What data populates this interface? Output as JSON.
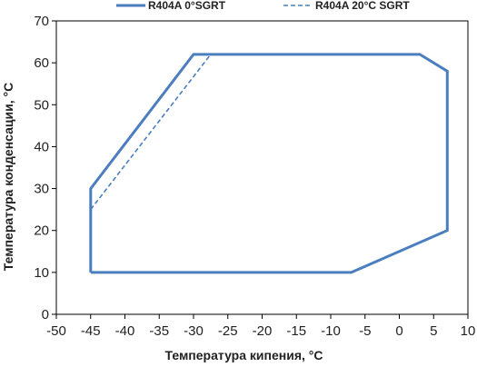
{
  "chart_data": {
    "type": "line",
    "title": "",
    "xlabel": "Температура кипения, °C",
    "ylabel": "Температура конденсации, °C",
    "xlim": [
      -50,
      10
    ],
    "ylim": [
      0,
      70
    ],
    "x_ticks": [
      -50,
      -45,
      -40,
      -35,
      -30,
      -25,
      -20,
      -15,
      -10,
      -5,
      0,
      5,
      10
    ],
    "y_ticks": [
      0,
      10,
      20,
      30,
      40,
      50,
      60,
      70
    ],
    "x_tick_labels": [
      "-50",
      "-45",
      "-40",
      "-35",
      "-30",
      "-25",
      "-20",
      "-15",
      "-10",
      "-5",
      "0",
      "5",
      "10"
    ],
    "y_tick_labels": [
      "0",
      "10",
      "20",
      "30",
      "40",
      "50",
      "60",
      "70"
    ],
    "grid": false,
    "legend_position": "top",
    "colors": {
      "series": "#4a7ebf",
      "axis": "#000000",
      "text": "#222222"
    },
    "series": [
      {
        "name": "R404A 0°SGRT",
        "style": "solid",
        "x": [
          -45,
          -45,
          -30,
          3,
          7,
          7,
          -7,
          -45
        ],
        "y": [
          10,
          30,
          62,
          62,
          58,
          20,
          10,
          10
        ]
      },
      {
        "name": "R404A 20°C SGRT",
        "style": "dashed",
        "x": [
          -45,
          -27.5
        ],
        "y": [
          25,
          62
        ]
      }
    ]
  }
}
